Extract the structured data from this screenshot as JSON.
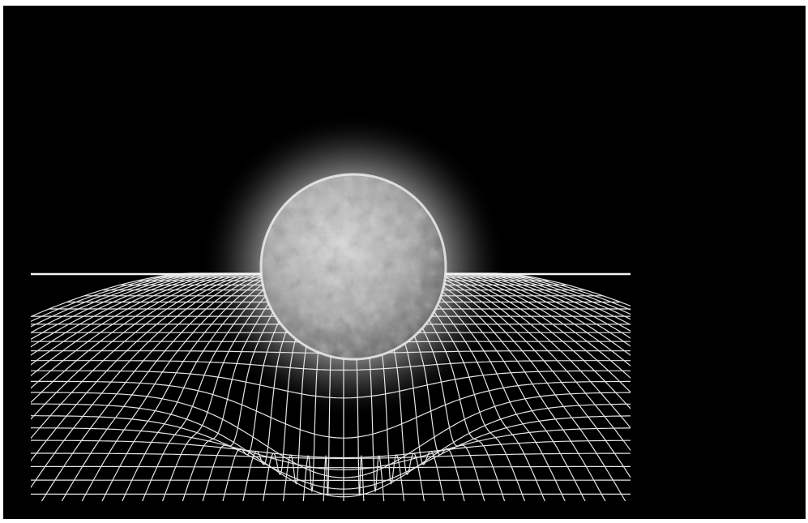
{
  "image": {
    "subject": "sun-on-spacetime-grid",
    "colors": {
      "background": "#000000",
      "frame": "#ffffff",
      "grid_line": "#e6e6e6",
      "star_light": "#d9d9d9",
      "star_dark": "#4a4a4a",
      "glow": "#ffffff"
    }
  }
}
